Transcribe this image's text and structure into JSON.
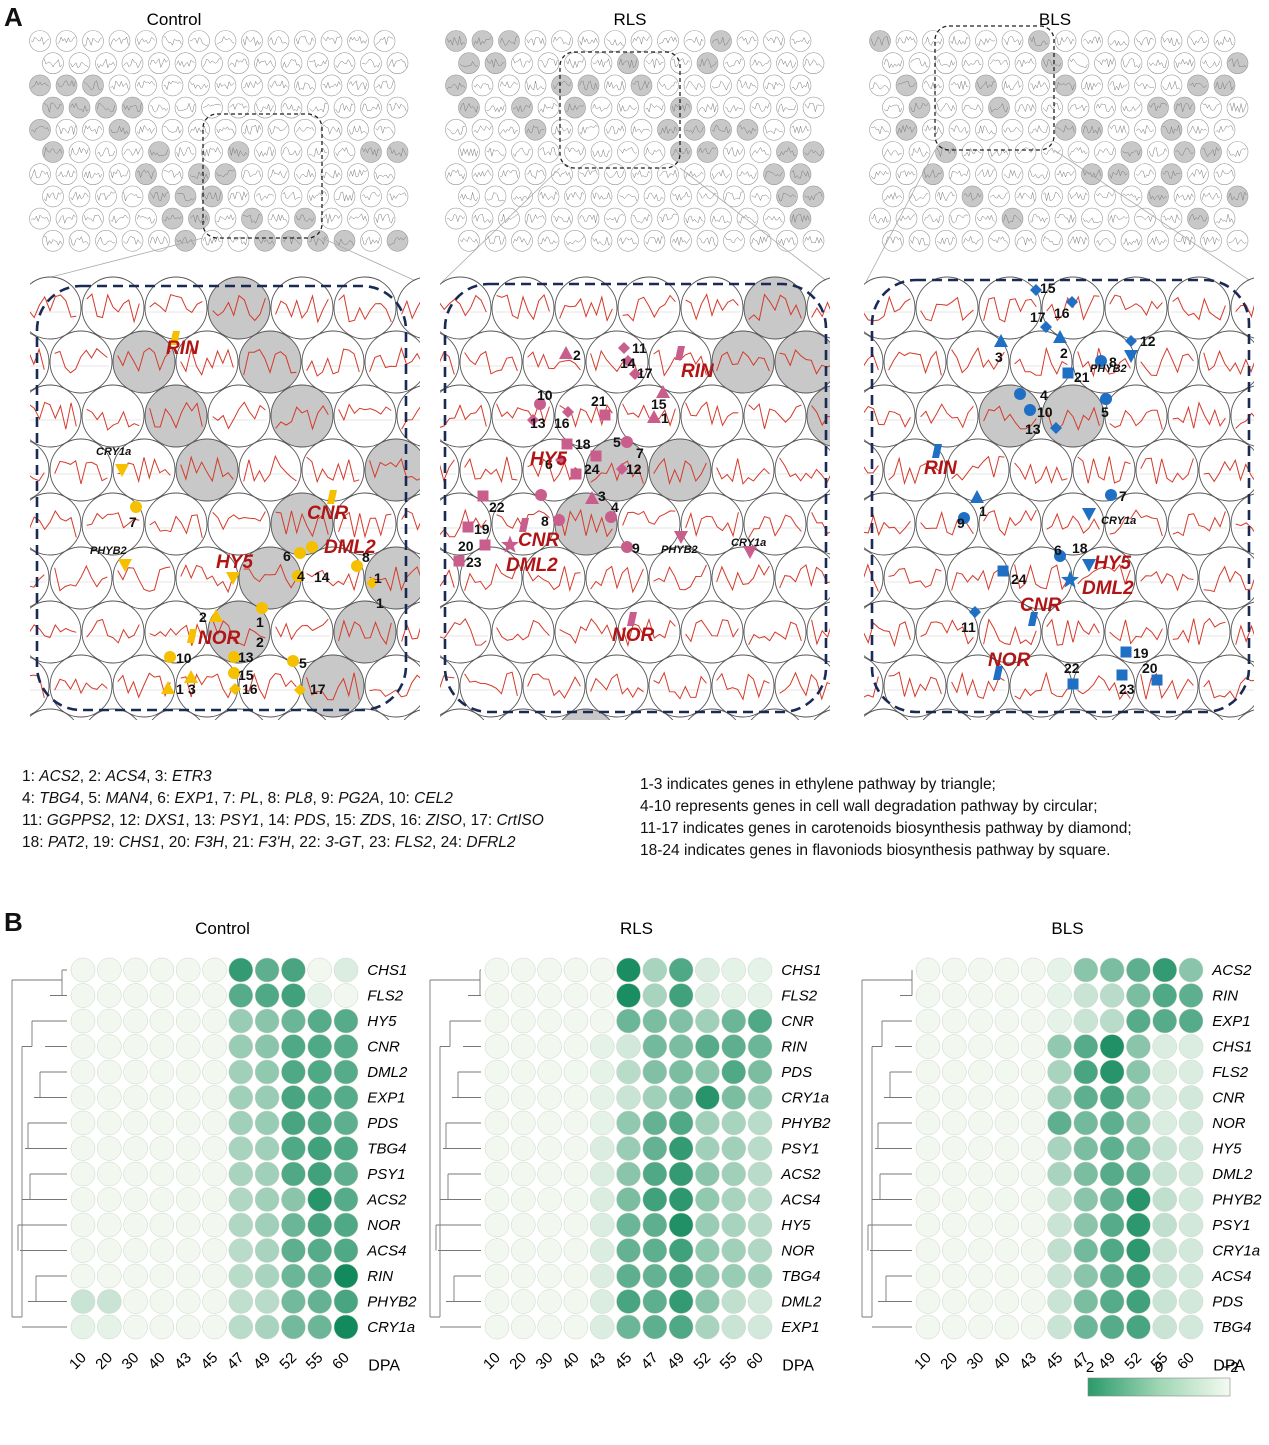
{
  "figure": {
    "panel_a_letter": "A",
    "panel_b_letter": "B",
    "conditions": [
      "Control",
      "RLS",
      "BLS"
    ],
    "dpa_label": "DPA",
    "dpa_ticks": [
      "10",
      "20",
      "30",
      "40",
      "43",
      "45",
      "47",
      "49",
      "52",
      "55",
      "60"
    ]
  },
  "som": {
    "overview_highlights": [
      [
        [
          0,
          2
        ],
        [
          0,
          3
        ],
        [
          0,
          4
        ],
        [
          0,
          5
        ],
        [
          1,
          2
        ],
        [
          1,
          3
        ],
        [
          2,
          2
        ],
        [
          2,
          3
        ],
        [
          3,
          3
        ],
        [
          3,
          4
        ],
        [
          4,
          5
        ],
        [
          4,
          6
        ],
        [
          4,
          7
        ],
        [
          5,
          7
        ],
        [
          5,
          8
        ],
        [
          5,
          9
        ],
        [
          6,
          6
        ],
        [
          6,
          7
        ],
        [
          6,
          8
        ],
        [
          7,
          5
        ],
        [
          7,
          6
        ],
        [
          8,
          8
        ],
        [
          8,
          9
        ],
        [
          8,
          10
        ],
        [
          9,
          9
        ],
        [
          9,
          10
        ],
        [
          10,
          8
        ],
        [
          10,
          9
        ],
        [
          10,
          10
        ],
        [
          10,
          11
        ],
        [
          10,
          12
        ],
        [
          11,
          9
        ],
        [
          12,
          5
        ],
        [
          13,
          5
        ],
        [
          13,
          9
        ]
      ],
      [
        [
          0,
          0
        ],
        [
          0,
          1
        ],
        [
          0,
          2
        ],
        [
          0,
          3
        ],
        [
          1,
          0
        ],
        [
          1,
          1
        ],
        [
          2,
          0
        ],
        [
          2,
          3
        ],
        [
          3,
          4
        ],
        [
          4,
          2
        ],
        [
          4,
          3
        ],
        [
          5,
          2
        ],
        [
          6,
          1
        ],
        [
          7,
          2
        ],
        [
          8,
          3
        ],
        [
          8,
          4
        ],
        [
          8,
          5
        ],
        [
          9,
          1
        ],
        [
          9,
          4
        ],
        [
          9,
          5
        ],
        [
          10,
          0
        ],
        [
          10,
          4
        ],
        [
          11,
          4
        ],
        [
          12,
          5
        ],
        [
          12,
          6
        ],
        [
          12,
          7
        ],
        [
          13,
          5
        ],
        [
          13,
          6
        ],
        [
          13,
          7
        ],
        [
          13,
          8
        ]
      ],
      [
        [
          0,
          0
        ],
        [
          1,
          2
        ],
        [
          1,
          3
        ],
        [
          1,
          4
        ],
        [
          2,
          5
        ],
        [
          2,
          6
        ],
        [
          3,
          7
        ],
        [
          4,
          2
        ],
        [
          4,
          3
        ],
        [
          5,
          8
        ],
        [
          6,
          0
        ],
        [
          6,
          1
        ],
        [
          7,
          2
        ],
        [
          7,
          4
        ],
        [
          8,
          4
        ],
        [
          8,
          6
        ],
        [
          9,
          5
        ],
        [
          9,
          6
        ],
        [
          10,
          3
        ],
        [
          10,
          7
        ],
        [
          11,
          3
        ],
        [
          11,
          4
        ],
        [
          11,
          5
        ],
        [
          11,
          6
        ],
        [
          12,
          2
        ],
        [
          12,
          5
        ],
        [
          12,
          8
        ],
        [
          13,
          1
        ],
        [
          13,
          2
        ],
        [
          13,
          7
        ]
      ]
    ],
    "gene_labels": {
      "control": [
        "RIN",
        "CRY1a",
        "CNR",
        "DML2",
        "PHYB2",
        "HY5",
        "NOR"
      ],
      "rls": [
        "RIN",
        "HY5",
        "CNR",
        "DML2",
        "PHYB2",
        "CRY1a",
        "NOR"
      ],
      "bls": [
        "PHYB2",
        "RIN",
        "CRY1a",
        "HY5",
        "DML2",
        "CNR",
        "NOR"
      ]
    }
  },
  "legend": {
    "gene_key_lines": [
      [
        [
          "1: ",
          ""
        ],
        [
          "ACS2",
          "i"
        ],
        [
          ", 2: ",
          ""
        ],
        [
          "ACS4",
          "i"
        ],
        [
          ", 3: ",
          ""
        ],
        [
          "ETR3",
          "i"
        ]
      ],
      [
        [
          "4: ",
          ""
        ],
        [
          "TBG4",
          "i"
        ],
        [
          ", 5: ",
          ""
        ],
        [
          "MAN4",
          "i"
        ],
        [
          ", 6: ",
          ""
        ],
        [
          "EXP1",
          "i"
        ],
        [
          ", 7: ",
          ""
        ],
        [
          "PL",
          "i"
        ],
        [
          ", 8: ",
          ""
        ],
        [
          "PL8",
          "i"
        ],
        [
          ", 9: ",
          ""
        ],
        [
          "PG2A",
          "i"
        ],
        [
          ", 10: ",
          ""
        ],
        [
          "CEL2",
          "i"
        ]
      ],
      [
        [
          "11: ",
          ""
        ],
        [
          "GGPPS2",
          "i"
        ],
        [
          ", 12: ",
          ""
        ],
        [
          "DXS1",
          "i"
        ],
        [
          ", 13: ",
          ""
        ],
        [
          "PSY1",
          "i"
        ],
        [
          ", 14: ",
          ""
        ],
        [
          "PDS",
          "i"
        ],
        [
          ", 15: ",
          ""
        ],
        [
          "ZDS",
          "i"
        ],
        [
          ", 16: ",
          ""
        ],
        [
          "ZISO",
          "i"
        ],
        [
          ", 17: ",
          ""
        ],
        [
          "CrtISO",
          "i"
        ]
      ],
      [
        [
          "18: ",
          ""
        ],
        [
          "PAT2",
          "i"
        ],
        [
          ", 19: ",
          ""
        ],
        [
          "CHS1",
          "i"
        ],
        [
          ", 20: ",
          ""
        ],
        [
          "F3H",
          "i"
        ],
        [
          ", 21: ",
          ""
        ],
        [
          "F3'H",
          "i"
        ],
        [
          ", 22: ",
          ""
        ],
        [
          "3-GT",
          "i"
        ],
        [
          ", 23: ",
          ""
        ],
        [
          "FLS2",
          "i"
        ],
        [
          ", 24: ",
          ""
        ],
        [
          "DFRL2",
          "i"
        ]
      ]
    ],
    "pathway_lines": [
      "1-3 indicates genes in ethylene pathway by triangle;",
      "4-10 represents genes in cell wall degradation pathway by circular;",
      "11-17 indicates genes in carotenoids biosynthesis pathway by  diamond;",
      "18-24 indicates genes in flavoniods biosynthesis pathway by square."
    ]
  },
  "colors": {
    "control_marker": "#f5c000",
    "rls_marker": "#c95e8d",
    "bls_marker": "#1f6fc4",
    "gene_label": "#b01414",
    "highlight_circle": "#c8c8c8",
    "trace": "#d43a2a",
    "dashed_box": "#1a2a55",
    "heat_high": "#138a5e",
    "heat_low": "#f2f8f0"
  },
  "chart_data": [
    {
      "type": "heatmap",
      "title": "Control",
      "x_label": "DPA",
      "x": [
        "10",
        "20",
        "30",
        "40",
        "43",
        "45",
        "47",
        "49",
        "52",
        "55",
        "60"
      ],
      "rows": [
        "CHS1",
        "FLS2",
        "HY5",
        "CNR",
        "DML2",
        "EXP1",
        "PDS",
        "TBG4",
        "PSY1",
        "ACS2",
        "NOR",
        "ACS4",
        "RIN",
        "PHYB2",
        "CRY1a"
      ],
      "values": [
        [
          -0.6,
          -0.6,
          -0.6,
          -0.6,
          -0.6,
          -0.6,
          1.8,
          1.2,
          1.5,
          -0.6,
          -0.4
        ],
        [
          -0.6,
          -0.6,
          -0.6,
          -0.6,
          -0.6,
          -0.6,
          1.3,
          1.4,
          1.6,
          -0.5,
          -0.6
        ],
        [
          -0.6,
          -0.6,
          -0.6,
          -0.6,
          -0.6,
          -0.6,
          0.4,
          0.6,
          1.0,
          1.3,
          1.3
        ],
        [
          -0.6,
          -0.6,
          -0.6,
          -0.6,
          -0.6,
          -0.6,
          0.4,
          0.6,
          1.4,
          1.4,
          1.3
        ],
        [
          -0.6,
          -0.6,
          -0.6,
          -0.6,
          -0.6,
          -0.6,
          0.3,
          0.5,
          1.4,
          1.4,
          1.3
        ],
        [
          -0.6,
          -0.6,
          -0.6,
          -0.6,
          -0.6,
          -0.6,
          0.3,
          0.4,
          1.5,
          1.4,
          1.3
        ],
        [
          -0.6,
          -0.6,
          -0.6,
          -0.6,
          -0.6,
          -0.6,
          0.3,
          0.4,
          1.5,
          1.4,
          1.2
        ],
        [
          -0.6,
          -0.6,
          -0.6,
          -0.6,
          -0.6,
          -0.6,
          0.2,
          0.3,
          1.4,
          1.6,
          1.4
        ],
        [
          -0.6,
          -0.6,
          -0.6,
          -0.6,
          -0.6,
          -0.6,
          0.2,
          0.3,
          1.4,
          1.6,
          1.2
        ],
        [
          -0.6,
          -0.6,
          -0.6,
          -0.6,
          -0.6,
          -0.6,
          0.1,
          0.3,
          0.6,
          2.0,
          1.3
        ],
        [
          -0.6,
          -0.6,
          -0.6,
          -0.6,
          -0.6,
          -0.6,
          0.1,
          0.3,
          1.0,
          1.5,
          1.4
        ],
        [
          -0.6,
          -0.6,
          -0.6,
          -0.6,
          -0.6,
          -0.6,
          0.0,
          0.2,
          1.2,
          1.3,
          1.4
        ],
        [
          -0.6,
          -0.6,
          -0.6,
          -0.6,
          -0.6,
          -0.6,
          0.0,
          0.2,
          1.0,
          1.1,
          2.3
        ],
        [
          -0.2,
          -0.2,
          -0.6,
          -0.6,
          -0.6,
          -0.6,
          -0.1,
          0.0,
          0.9,
          1.1,
          1.5
        ],
        [
          -0.5,
          -0.5,
          -0.6,
          -0.6,
          -0.6,
          -0.6,
          0.0,
          0.2,
          0.9,
          1.0,
          2.3
        ]
      ],
      "color_range": [
        -2,
        2
      ]
    },
    {
      "type": "heatmap",
      "title": "RLS",
      "x_label": "DPA",
      "x": [
        "10",
        "20",
        "30",
        "40",
        "43",
        "45",
        "47",
        "49",
        "52",
        "55",
        "60"
      ],
      "rows": [
        "CHS1",
        "FLS2",
        "CNR",
        "RIN",
        "PDS",
        "CRY1a",
        "PHYB2",
        "PSY1",
        "ACS2",
        "ACS4",
        "HY5",
        "NOR",
        "TBG4",
        "DML2",
        "EXP1"
      ],
      "values": [
        [
          -0.6,
          -0.6,
          -0.6,
          -0.6,
          -0.6,
          2.2,
          0.2,
          1.4,
          -0.4,
          -0.5,
          -0.5
        ],
        [
          -0.6,
          -0.6,
          -0.6,
          -0.6,
          -0.6,
          2.2,
          0.2,
          1.6,
          -0.4,
          -0.5,
          -0.5
        ],
        [
          -0.6,
          -0.6,
          -0.6,
          -0.6,
          -0.6,
          1.0,
          0.8,
          0.7,
          0.3,
          1.0,
          1.4
        ],
        [
          -0.6,
          -0.6,
          -0.6,
          -0.6,
          -0.5,
          -0.3,
          0.9,
          0.8,
          1.3,
          1.2,
          1.0
        ],
        [
          -0.6,
          -0.6,
          -0.6,
          -0.6,
          -0.5,
          0.0,
          0.7,
          0.8,
          0.6,
          1.4,
          0.8
        ],
        [
          -0.6,
          -0.6,
          -0.6,
          -0.6,
          -0.5,
          -0.2,
          0.3,
          0.7,
          2.0,
          0.8,
          0.4
        ],
        [
          -0.6,
          -0.6,
          -0.6,
          -0.6,
          -0.5,
          0.5,
          1.1,
          1.4,
          0.3,
          0.2,
          0.0
        ],
        [
          -0.6,
          -0.6,
          -0.6,
          -0.6,
          -0.4,
          0.4,
          1.1,
          1.8,
          0.3,
          0.3,
          0.0
        ],
        [
          -0.6,
          -0.6,
          -0.6,
          -0.6,
          -0.4,
          0.6,
          1.4,
          1.8,
          0.6,
          0.3,
          0.0
        ],
        [
          -0.6,
          -0.6,
          -0.6,
          -0.6,
          -0.4,
          0.8,
          1.6,
          1.9,
          0.5,
          0.2,
          0.0
        ],
        [
          -0.6,
          -0.6,
          -0.6,
          -0.6,
          -0.4,
          1.0,
          1.2,
          2.1,
          0.4,
          0.2,
          0.0
        ],
        [
          -0.6,
          -0.6,
          -0.6,
          -0.6,
          -0.4,
          1.1,
          1.2,
          1.6,
          0.5,
          0.3,
          0.1
        ],
        [
          -0.6,
          -0.6,
          -0.6,
          -0.6,
          -0.4,
          1.2,
          1.1,
          1.5,
          0.6,
          0.4,
          0.3
        ],
        [
          -0.6,
          -0.6,
          -0.6,
          -0.6,
          -0.4,
          1.5,
          1.2,
          1.8,
          0.6,
          -0.1,
          -0.3
        ],
        [
          -0.6,
          -0.6,
          -0.6,
          -0.6,
          -0.4,
          1.0,
          1.2,
          1.4,
          0.2,
          -0.2,
          -0.3
        ]
      ],
      "color_range": [
        -2,
        2
      ]
    },
    {
      "type": "heatmap",
      "title": "BLS",
      "x_label": "DPA",
      "x": [
        "10",
        "20",
        "30",
        "40",
        "43",
        "45",
        "47",
        "49",
        "52",
        "55",
        "60"
      ],
      "rows": [
        "ACS2",
        "RIN",
        "EXP1",
        "CHS1",
        "FLS2",
        "CNR",
        "NOR",
        "HY5",
        "DML2",
        "PHYB2",
        "PSY1",
        "CRY1a",
        "ACS4",
        "PDS",
        "TBG4"
      ],
      "values": [
        [
          -0.6,
          -0.6,
          -0.6,
          -0.6,
          -0.6,
          -0.5,
          0.6,
          0.8,
          1.2,
          1.8,
          0.6
        ],
        [
          -0.6,
          -0.6,
          -0.6,
          -0.6,
          -0.6,
          -0.5,
          -0.2,
          0.0,
          0.8,
          1.4,
          1.2
        ],
        [
          -0.6,
          -0.6,
          -0.6,
          -0.6,
          -0.6,
          -0.5,
          -0.2,
          0.0,
          1.3,
          1.3,
          1.3
        ],
        [
          -0.6,
          -0.6,
          -0.6,
          -0.6,
          -0.6,
          0.5,
          1.3,
          2.1,
          0.6,
          -0.4,
          -0.4
        ],
        [
          -0.6,
          -0.6,
          -0.6,
          -0.6,
          -0.6,
          0.2,
          1.5,
          2.0,
          0.6,
          -0.4,
          -0.4
        ],
        [
          -0.6,
          -0.6,
          -0.6,
          -0.6,
          -0.6,
          0.3,
          1.2,
          1.5,
          0.5,
          -0.4,
          -0.3
        ],
        [
          -0.6,
          -0.6,
          -0.6,
          -0.6,
          -0.6,
          1.2,
          0.9,
          1.2,
          0.6,
          -0.4,
          -0.3
        ],
        [
          -0.6,
          -0.6,
          -0.6,
          -0.6,
          -0.6,
          0.2,
          0.8,
          1.2,
          0.8,
          -0.2,
          -0.3
        ],
        [
          -0.6,
          -0.6,
          -0.6,
          -0.6,
          -0.6,
          0.2,
          0.8,
          1.3,
          1.2,
          -0.2,
          -0.3
        ],
        [
          -0.6,
          -0.6,
          -0.6,
          -0.6,
          -0.6,
          -0.2,
          0.6,
          1.1,
          2.0,
          -0.1,
          -0.3
        ],
        [
          -0.6,
          -0.6,
          -0.6,
          -0.6,
          -0.6,
          -0.2,
          0.6,
          1.3,
          1.9,
          -0.1,
          -0.3
        ],
        [
          -0.6,
          -0.6,
          -0.6,
          -0.6,
          -0.6,
          -0.1,
          0.9,
          1.4,
          1.9,
          -0.2,
          -0.3
        ],
        [
          -0.6,
          -0.6,
          -0.6,
          -0.6,
          -0.6,
          -0.2,
          0.6,
          1.2,
          1.6,
          -0.2,
          -0.3
        ],
        [
          -0.6,
          -0.6,
          -0.6,
          -0.6,
          -0.6,
          -0.2,
          0.8,
          1.3,
          1.6,
          -0.2,
          -0.3
        ],
        [
          -0.6,
          -0.6,
          -0.6,
          -0.6,
          -0.6,
          -0.2,
          1.0,
          1.3,
          1.5,
          -0.2,
          -0.3
        ]
      ],
      "color_range": [
        -2,
        2
      ]
    }
  ],
  "colorbar": {
    "labels": [
      "2",
      "0",
      "−2"
    ]
  }
}
